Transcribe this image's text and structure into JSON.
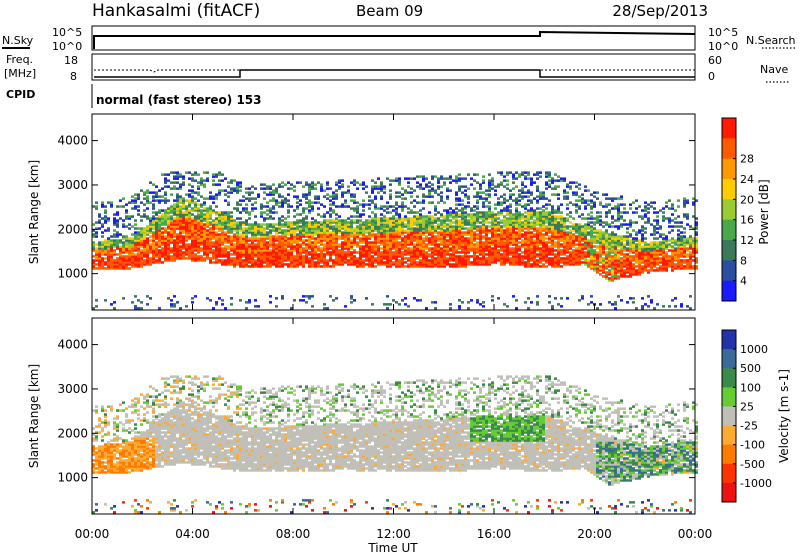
{
  "header": {
    "station": "Hankasalmi (fitACF)",
    "beam": "Beam 09",
    "date": "28/Sep/2013"
  },
  "noise_panel": {
    "left_label": "N.Sky",
    "right_label": "N.Search",
    "left_ticks": [
      "10^5",
      "10^0"
    ],
    "right_ticks": [
      "10^5",
      "10^0"
    ]
  },
  "freq_panel": {
    "left_label_line1": "Freq.",
    "left_label_line2": "[MHz]",
    "right_label": "Nave",
    "left_ticks": [
      "18",
      "8"
    ],
    "right_ticks": [
      "60",
      "0"
    ]
  },
  "cpid": {
    "label": "CPID",
    "text": "normal (fast stereo) 153"
  },
  "x_axis": {
    "label": "Time UT",
    "ticks": [
      "00:00",
      "04:00",
      "08:00",
      "12:00",
      "16:00",
      "20:00",
      "00:00"
    ]
  },
  "chart_data": [
    {
      "type": "heatmap",
      "name": "Power",
      "ylabel": "Slant Range [km]",
      "yticks": [
        "1000",
        "2000",
        "3000",
        "4000"
      ],
      "ylim": [
        180,
        4600
      ],
      "xlim_hours": [
        0,
        24
      ],
      "colorbar_label": "Power [dB]",
      "colorbar_ticks": [
        "4",
        "8",
        "12",
        "16",
        "20",
        "24",
        "28"
      ],
      "colors": [
        "#1a1aff",
        "#2a4fa0",
        "#3a7a5a",
        "#4aa84a",
        "#99cc33",
        "#ffcc00",
        "#ff9900",
        "#ff5a00",
        "#ff1a00"
      ],
      "dense_band": [
        {
          "t": 0,
          "lo": 1100,
          "hi": 1700
        },
        {
          "t": 1.5,
          "lo": 1100,
          "hi": 1800
        },
        {
          "t": 3.5,
          "lo": 1300,
          "hi": 2700
        },
        {
          "t": 4.5,
          "lo": 1250,
          "hi": 2500
        },
        {
          "t": 6,
          "lo": 1100,
          "hi": 2100
        },
        {
          "t": 10,
          "lo": 1150,
          "hi": 2200
        },
        {
          "t": 14,
          "lo": 1100,
          "hi": 2300
        },
        {
          "t": 16,
          "lo": 1200,
          "hi": 2400
        },
        {
          "t": 18,
          "lo": 1100,
          "hi": 2400
        },
        {
          "t": 19.5,
          "lo": 1200,
          "hi": 2100
        },
        {
          "t": 20.5,
          "lo": 800,
          "hi": 1900
        },
        {
          "t": 22,
          "lo": 1000,
          "hi": 1700
        },
        {
          "t": 24,
          "lo": 1100,
          "hi": 1800
        }
      ]
    },
    {
      "type": "heatmap",
      "name": "Velocity",
      "ylabel": "Slant Range [km]",
      "yticks": [
        "1000",
        "2000",
        "3000",
        "4000"
      ],
      "ylim": [
        180,
        4600
      ],
      "xlim_hours": [
        0,
        24
      ],
      "colorbar_label": "Velocity [m s-1]",
      "colorbar_ticks": [
        "1000",
        "500",
        "100",
        "25",
        "-25",
        "-100",
        "-500",
        "-1000"
      ],
      "colors": [
        "#2233aa",
        "#3a6a9a",
        "#3a8a4a",
        "#66cc33",
        "#c0c0b8",
        "#ffaa33",
        "#ff7a00",
        "#ff3300",
        "#ee1111"
      ]
    }
  ]
}
